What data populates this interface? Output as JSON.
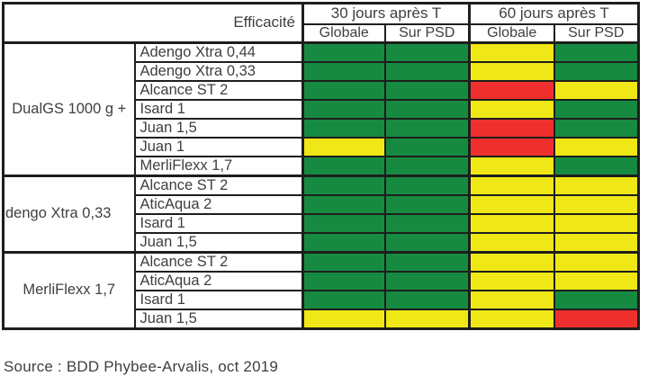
{
  "colors": {
    "green": "#178a41",
    "yellow": "#efe816",
    "red": "#ee2f2e",
    "border": "#1e1e1c",
    "text": "#3f3f3e"
  },
  "header": {
    "efficacite": "Efficacité",
    "period_30": "30 jours après T",
    "period_60": "60 jours après T",
    "sub_cols": [
      "Globale",
      "Sur PSD",
      "Globale",
      "Sur PSD"
    ]
  },
  "source": "Source : BDD Phybee-Arvalis, oct 2019",
  "chart_data": {
    "type": "heatmap",
    "title": "Efficacité",
    "columns": [
      "30 jours après T - Globale",
      "30 jours après T - Sur PSD",
      "60 jours après T - Globale",
      "60 jours après T - Sur PSD"
    ],
    "value_categories": [
      "green",
      "yellow",
      "red"
    ],
    "rows": [
      {
        "group": "DualGS 1000 g +",
        "product": "Adengo Xtra 0,44",
        "ratings": [
          "green",
          "green",
          "yellow",
          "green"
        ]
      },
      {
        "group": "DualGS 1000 g +",
        "product": "Adengo Xtra 0,33",
        "ratings": [
          "green",
          "green",
          "yellow",
          "green"
        ]
      },
      {
        "group": "DualGS 1000 g +",
        "product": "Alcance ST 2",
        "ratings": [
          "green",
          "green",
          "red",
          "yellow"
        ]
      },
      {
        "group": "DualGS 1000 g +",
        "product": "Isard 1",
        "ratings": [
          "green",
          "green",
          "yellow",
          "green"
        ]
      },
      {
        "group": "DualGS 1000 g +",
        "product": "Juan 1,5",
        "ratings": [
          "green",
          "green",
          "red",
          "green"
        ]
      },
      {
        "group": "DualGS 1000 g +",
        "product": "Juan 1",
        "ratings": [
          "yellow",
          "green",
          "red",
          "yellow"
        ]
      },
      {
        "group": "DualGS 1000 g +",
        "product": "MerliFlexx 1,7",
        "ratings": [
          "green",
          "green",
          "yellow",
          "green"
        ]
      },
      {
        "group": "dengo Xtra 0,33",
        "product": "Alcance ST 2",
        "ratings": [
          "green",
          "green",
          "yellow",
          "yellow"
        ]
      },
      {
        "group": "dengo Xtra 0,33",
        "product": "AticAqua 2",
        "ratings": [
          "green",
          "green",
          "yellow",
          "yellow"
        ]
      },
      {
        "group": "dengo Xtra 0,33",
        "product": "Isard 1",
        "ratings": [
          "green",
          "green",
          "yellow",
          "yellow"
        ]
      },
      {
        "group": "dengo Xtra 0,33",
        "product": "Juan 1,5",
        "ratings": [
          "green",
          "green",
          "yellow",
          "yellow"
        ]
      },
      {
        "group": "MerliFlexx 1,7",
        "product": "Alcance ST 2",
        "ratings": [
          "green",
          "green",
          "yellow",
          "yellow"
        ]
      },
      {
        "group": "MerliFlexx 1,7",
        "product": "AticAqua 2",
        "ratings": [
          "green",
          "green",
          "yellow",
          "yellow"
        ]
      },
      {
        "group": "MerliFlexx 1,7",
        "product": "Isard 1",
        "ratings": [
          "green",
          "green",
          "yellow",
          "green"
        ]
      },
      {
        "group": "MerliFlexx 1,7",
        "product": "Juan 1,5",
        "ratings": [
          "yellow",
          "yellow",
          "yellow",
          "red"
        ]
      }
    ],
    "source": "Source : BDD Phybee-Arvalis, oct 2019",
    "legend_position": "none",
    "grid": true
  }
}
